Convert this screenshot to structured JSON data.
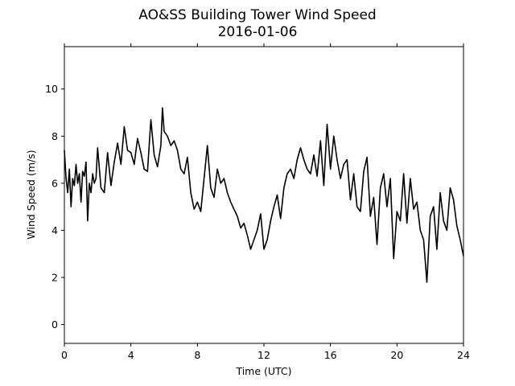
{
  "chart_data": {
    "type": "line",
    "title": "AO&SS Building Tower Wind Speed",
    "subtitle": "2016-01-06",
    "xlabel": "Time (UTC)",
    "ylabel": "Wind Speed (m/s)",
    "xlim": [
      0,
      24
    ],
    "ylim": [
      -0.8,
      11.8
    ],
    "xticks": [
      0,
      4,
      8,
      12,
      16,
      20,
      24
    ],
    "xtick_labels": [
      "0",
      "4",
      "8",
      "12",
      "16",
      "20",
      "24"
    ],
    "yticks": [
      0,
      2,
      4,
      6,
      8,
      10
    ],
    "ytick_labels": [
      "0",
      "2",
      "4",
      "6",
      "8",
      "10"
    ],
    "grid": false,
    "legend": "none",
    "line_color": "#000000",
    "series": [
      {
        "x": [
          0,
          0.1,
          0.2,
          0.3,
          0.4,
          0.5,
          0.6,
          0.7,
          0.8,
          0.9,
          1.0,
          1.1,
          1.2,
          1.3,
          1.4,
          1.5,
          1.6,
          1.7,
          1.8,
          1.9,
          2.0,
          2.2,
          2.4,
          2.6,
          2.8,
          3.0,
          3.2,
          3.4,
          3.6,
          3.8,
          4.0,
          4.2,
          4.4,
          4.6,
          4.8,
          5.0,
          5.2,
          5.4,
          5.6,
          5.8,
          5.9,
          6.0,
          6.2,
          6.4,
          6.6,
          6.8,
          7.0,
          7.2,
          7.4,
          7.6,
          7.8,
          8.0,
          8.2,
          8.4,
          8.6,
          8.8,
          9.0,
          9.2,
          9.4,
          9.6,
          9.8,
          10.0,
          10.2,
          10.4,
          10.6,
          10.8,
          11.0,
          11.2,
          11.4,
          11.6,
          11.8,
          12.0,
          12.2,
          12.4,
          12.6,
          12.8,
          13.0,
          13.2,
          13.4,
          13.6,
          13.8,
          14.0,
          14.2,
          14.4,
          14.6,
          14.8,
          15.0,
          15.2,
          15.4,
          15.6,
          15.8,
          16.0,
          16.2,
          16.4,
          16.6,
          16.8,
          17.0,
          17.2,
          17.4,
          17.6,
          17.8,
          18.0,
          18.2,
          18.4,
          18.6,
          18.8,
          19.0,
          19.2,
          19.4,
          19.6,
          19.8,
          20.0,
          20.2,
          20.4,
          20.6,
          20.8,
          21.0,
          21.2,
          21.4,
          21.6,
          21.8,
          22.0,
          22.2,
          22.4,
          22.6,
          22.8,
          23.0,
          23.2,
          23.4,
          23.6,
          23.8,
          24.0
        ],
        "y": [
          7.4,
          6.2,
          5.6,
          6.6,
          5.0,
          6.2,
          5.9,
          6.8,
          6.0,
          6.4,
          5.2,
          6.5,
          6.3,
          6.9,
          4.4,
          6.0,
          5.6,
          6.4,
          6.0,
          6.2,
          7.5,
          5.8,
          5.6,
          7.3,
          5.9,
          6.9,
          7.7,
          6.8,
          8.4,
          7.4,
          7.3,
          6.8,
          7.9,
          7.3,
          6.6,
          6.5,
          8.7,
          7.2,
          6.7,
          7.6,
          9.2,
          8.2,
          8.0,
          7.6,
          7.8,
          7.4,
          6.6,
          6.4,
          7.1,
          5.6,
          4.9,
          5.2,
          4.8,
          6.2,
          7.6,
          5.8,
          5.4,
          6.6,
          6.0,
          6.2,
          5.6,
          5.2,
          4.9,
          4.6,
          4.1,
          4.3,
          3.8,
          3.2,
          3.6,
          4.0,
          4.7,
          3.2,
          3.6,
          4.4,
          5.0,
          5.5,
          4.5,
          5.8,
          6.4,
          6.6,
          6.2,
          7.0,
          7.5,
          7.0,
          6.6,
          6.4,
          7.2,
          6.3,
          7.8,
          5.9,
          8.5,
          6.6,
          8.0,
          7.0,
          6.2,
          6.8,
          7.0,
          5.3,
          6.4,
          5.0,
          4.8,
          6.5,
          7.1,
          4.6,
          5.4,
          3.4,
          5.8,
          6.4,
          5.0,
          6.2,
          2.8,
          4.8,
          4.4,
          6.4,
          4.3,
          6.2,
          4.9,
          5.2,
          4.0,
          3.6,
          1.8,
          4.6,
          5.0,
          3.2,
          5.6,
          4.4,
          4.0,
          5.8,
          5.3,
          4.2,
          3.6,
          2.9
        ]
      }
    ]
  }
}
